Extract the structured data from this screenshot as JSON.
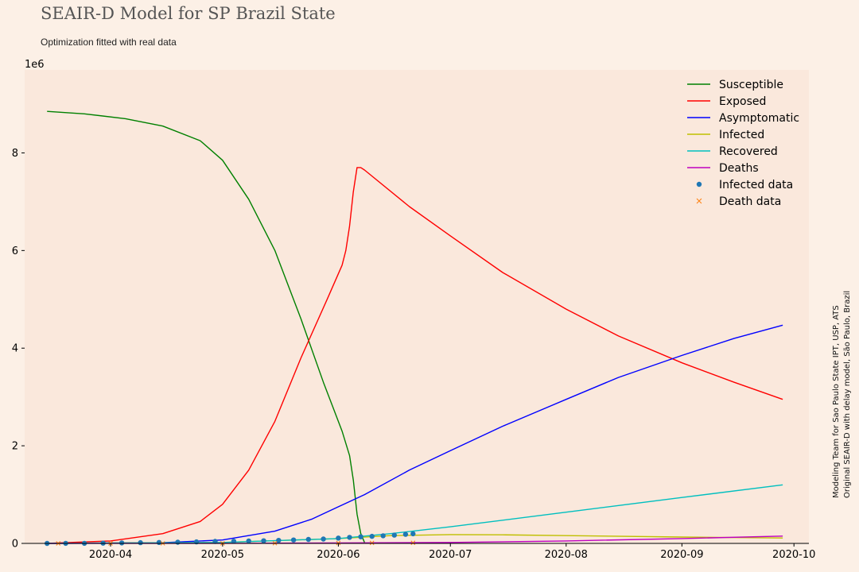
{
  "header": {
    "title": "SEAIR-D Model for SP Brazil State",
    "subtitle": "Optimization fitted with real data"
  },
  "side_note": {
    "line1": "Modeling Team for Sao Paulo State IPT, USP, ATS",
    "line2": "Original SEAIR-D with delay model, São Paulo, Brazil"
  },
  "chart_data": {
    "type": "line",
    "title": "SEAIR-D Model for SP Brazil State",
    "subtitle": "Optimization fitted with real data",
    "xlabel": "",
    "ylabel": "",
    "y_offset_label": "1e6",
    "y_scale": 1000000,
    "xlim": [
      "2020-03-09",
      "2020-10-05"
    ],
    "ylim": [
      0,
      9700000
    ],
    "x_ticks": [
      "2020-04-01",
      "2020-05-01",
      "2020-06-01",
      "2020-07-01",
      "2020-08-01",
      "2020-09-01",
      "2020-10-01"
    ],
    "x_tick_labels": [
      "2020-04",
      "2020-05",
      "2020-06",
      "2020-07",
      "2020-08",
      "2020-09",
      "2020-10"
    ],
    "y_ticks": [
      0,
      2000000,
      4000000,
      6000000,
      8000000
    ],
    "y_tick_labels": [
      "0",
      "2",
      "4",
      "6",
      "8"
    ],
    "grid": false,
    "legend_position": "top-right",
    "background": "#fae8dc",
    "series": [
      {
        "name": "Susceptible",
        "kind": "line",
        "color": "#008000",
        "x": [
          "2020-03-15",
          "2020-03-25",
          "2020-04-05",
          "2020-04-15",
          "2020-04-25",
          "2020-05-01",
          "2020-05-08",
          "2020-05-15",
          "2020-05-22",
          "2020-05-28",
          "2020-06-02",
          "2020-06-04",
          "2020-06-05",
          "2020-06-06",
          "2020-06-07",
          "2020-06-08"
        ],
        "y": [
          8850000,
          8800000,
          8700000,
          8550000,
          8250000,
          7850000,
          7050000,
          6000000,
          4600000,
          3300000,
          2300000,
          1800000,
          1300000,
          600000,
          200000,
          20000
        ]
      },
      {
        "name": "Exposed",
        "kind": "line",
        "color": "#ff0000",
        "x": [
          "2020-03-15",
          "2020-04-01",
          "2020-04-15",
          "2020-04-25",
          "2020-05-01",
          "2020-05-08",
          "2020-05-15",
          "2020-05-22",
          "2020-05-29",
          "2020-06-02",
          "2020-06-03",
          "2020-06-04",
          "2020-06-05",
          "2020-06-06",
          "2020-06-07",
          "2020-06-08",
          "2020-06-20",
          "2020-07-01",
          "2020-07-15",
          "2020-08-01",
          "2020-08-15",
          "2020-09-01",
          "2020-09-15",
          "2020-09-28"
        ],
        "y": [
          0,
          50000,
          200000,
          450000,
          800000,
          1500000,
          2500000,
          3800000,
          5000000,
          5700000,
          6000000,
          6500000,
          7200000,
          7700000,
          7700000,
          7650000,
          6900000,
          6300000,
          5550000,
          4800000,
          4250000,
          3700000,
          3300000,
          2950000
        ]
      },
      {
        "name": "Asymptomatic",
        "kind": "line",
        "color": "#0000ff",
        "x": [
          "2020-03-15",
          "2020-04-15",
          "2020-05-01",
          "2020-05-15",
          "2020-05-25",
          "2020-06-01",
          "2020-06-08",
          "2020-06-20",
          "2020-07-01",
          "2020-07-15",
          "2020-08-01",
          "2020-08-15",
          "2020-09-01",
          "2020-09-15",
          "2020-09-28"
        ],
        "y": [
          0,
          15000,
          70000,
          250000,
          500000,
          750000,
          1000000,
          1500000,
          1900000,
          2400000,
          2950000,
          3400000,
          3850000,
          4200000,
          4470000
        ]
      },
      {
        "name": "Infected",
        "kind": "line",
        "color": "#bfbf00",
        "x": [
          "2020-03-15",
          "2020-05-01",
          "2020-06-01",
          "2020-06-15",
          "2020-07-01",
          "2020-07-15",
          "2020-08-01",
          "2020-09-01",
          "2020-09-28"
        ],
        "y": [
          0,
          20000,
          100000,
          160000,
          180000,
          175000,
          160000,
          130000,
          110000
        ]
      },
      {
        "name": "Recovered",
        "kind": "line",
        "color": "#00bfbf",
        "x": [
          "2020-03-15",
          "2020-05-01",
          "2020-06-01",
          "2020-06-15",
          "2020-07-01",
          "2020-08-01",
          "2020-09-01",
          "2020-09-28"
        ],
        "y": [
          0,
          20000,
          100000,
          200000,
          340000,
          640000,
          940000,
          1200000
        ]
      },
      {
        "name": "Deaths",
        "kind": "line",
        "color": "#bf00bf",
        "x": [
          "2020-03-15",
          "2020-05-01",
          "2020-06-01",
          "2020-07-01",
          "2020-08-01",
          "2020-09-01",
          "2020-09-28"
        ],
        "y": [
          0,
          2000,
          8000,
          20000,
          50000,
          100000,
          150000
        ]
      },
      {
        "name": "Infected data",
        "kind": "points",
        "marker": "circle",
        "color": "#1f77b4",
        "x": [
          "2020-03-15",
          "2020-03-20",
          "2020-03-25",
          "2020-03-30",
          "2020-04-04",
          "2020-04-09",
          "2020-04-14",
          "2020-04-19",
          "2020-04-24",
          "2020-04-29",
          "2020-05-04",
          "2020-05-08",
          "2020-05-12",
          "2020-05-16",
          "2020-05-20",
          "2020-05-24",
          "2020-05-28",
          "2020-06-01",
          "2020-06-04",
          "2020-06-07",
          "2020-06-10",
          "2020-06-13",
          "2020-06-16",
          "2020-06-19",
          "2020-06-21"
        ],
        "y": [
          136,
          1052,
          2339,
          5682,
          9371,
          14267,
          20004,
          24041,
          30374,
          40581,
          44411,
          49500,
          54286,
          61183,
          69859,
          81000,
          90000,
          109000,
          123000,
          135000,
          144500,
          157000,
          169500,
          185000,
          197000
        ]
      },
      {
        "name": "Death data",
        "kind": "points",
        "marker": "x",
        "color": "#ff7f0e",
        "x": [
          "2020-03-18",
          "2020-04-01",
          "2020-04-15",
          "2020-05-01",
          "2020-05-15",
          "2020-06-01",
          "2020-06-10",
          "2020-06-21"
        ],
        "y": [
          4,
          188,
          1015,
          2654,
          4688,
          7615,
          9522,
          11846
        ]
      }
    ]
  }
}
